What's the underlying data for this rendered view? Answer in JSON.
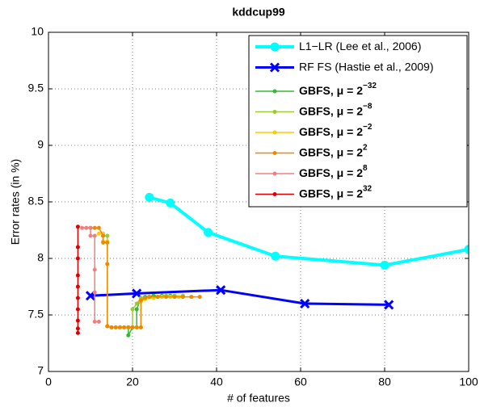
{
  "chart_data": {
    "type": "line",
    "title": "kddcup99",
    "x_label": "# of features",
    "y_label": "Error rates (in %)",
    "xlim": [
      0,
      100
    ],
    "xticks": [
      0,
      20,
      40,
      60,
      80,
      100
    ],
    "ylim": [
      7,
      10
    ],
    "yticks": [
      7,
      7.5,
      8,
      8.5,
      9,
      9.5,
      10
    ],
    "grid": true,
    "legend": "upper right",
    "series": [
      {
        "name": "L1−LR (Lee et al., 2006)",
        "color": "#00ffff",
        "marker": "circle",
        "x": [
          24,
          29,
          38,
          54,
          80,
          100
        ],
        "values": [
          8.54,
          8.49,
          8.23,
          8.02,
          7.94,
          8.08
        ]
      },
      {
        "name": "RF FS (Hastie et al., 2009)",
        "color": "#0000ff",
        "marker": "x",
        "x": [
          10,
          21,
          41,
          61,
          81
        ],
        "values": [
          7.67,
          7.69,
          7.72,
          7.6,
          7.59
        ]
      },
      {
        "name": "GBFS, μ = 2",
        "exponent": "−32",
        "color": "#33bb33",
        "marker": "dot",
        "x": [
          15,
          16,
          17,
          18,
          19,
          19,
          20,
          21,
          21,
          22,
          23,
          25,
          27,
          29
        ],
        "values": [
          7.39,
          7.39,
          7.39,
          7.39,
          7.39,
          7.32,
          7.39,
          7.39,
          7.55,
          7.65,
          7.66,
          7.67,
          7.67,
          7.67
        ]
      },
      {
        "name": "GBFS, μ = 2",
        "exponent": "−8",
        "color": "#99cc33",
        "marker": "dot",
        "x": [
          13,
          14,
          14,
          15,
          16,
          17,
          18,
          19,
          20,
          20,
          21,
          22,
          24,
          26,
          28,
          30,
          32
        ],
        "values": [
          8.2,
          8.2,
          7.4,
          7.39,
          7.39,
          7.39,
          7.39,
          7.39,
          7.39,
          7.55,
          7.6,
          7.65,
          7.66,
          7.66,
          7.67,
          7.67,
          7.67
        ]
      },
      {
        "name": "GBFS, μ = 2",
        "exponent": "−2",
        "color": "#ffcc00",
        "marker": "dot",
        "x": [
          12,
          13,
          13,
          14,
          14,
          15,
          16,
          17,
          18,
          19,
          20,
          21,
          22,
          22,
          23,
          25,
          27,
          29,
          31
        ],
        "values": [
          8.22,
          8.22,
          8.15,
          8.15,
          7.4,
          7.39,
          7.39,
          7.39,
          7.39,
          7.39,
          7.39,
          7.39,
          7.39,
          7.62,
          7.64,
          7.65,
          7.66,
          7.66,
          7.66
        ]
      },
      {
        "name": "GBFS, μ = 2",
        "exponent": "2",
        "color": "#ee8800",
        "marker": "dot",
        "x": [
          10,
          11,
          12,
          13,
          13,
          14,
          14,
          14,
          15,
          16,
          17,
          18,
          19,
          20,
          21,
          22,
          22,
          23,
          24,
          26,
          28,
          30,
          32,
          34,
          36
        ],
        "values": [
          8.27,
          8.27,
          8.27,
          8.2,
          8.14,
          8.14,
          7.95,
          7.4,
          7.39,
          7.39,
          7.39,
          7.39,
          7.39,
          7.39,
          7.39,
          7.39,
          7.63,
          7.65,
          7.66,
          7.66,
          7.66,
          7.66,
          7.66,
          7.66,
          7.66
        ]
      },
      {
        "name": "GBFS, μ = 2",
        "exponent": "8",
        "color": "#f08080",
        "marker": "dot",
        "x": [
          8,
          9,
          10,
          10,
          11,
          11,
          11,
          11,
          12
        ],
        "values": [
          8.27,
          8.27,
          8.27,
          8.2,
          8.2,
          7.9,
          7.7,
          7.44,
          7.44
        ]
      },
      {
        "name": "GBFS, μ = 2",
        "exponent": "32",
        "color": "#dd0000",
        "marker": "dot",
        "x": [
          7,
          7,
          7,
          7,
          7,
          7,
          7,
          7,
          7,
          7
        ],
        "values": [
          8.28,
          8.1,
          8.0,
          7.85,
          7.75,
          7.65,
          7.55,
          7.45,
          7.38,
          7.34
        ]
      }
    ]
  }
}
